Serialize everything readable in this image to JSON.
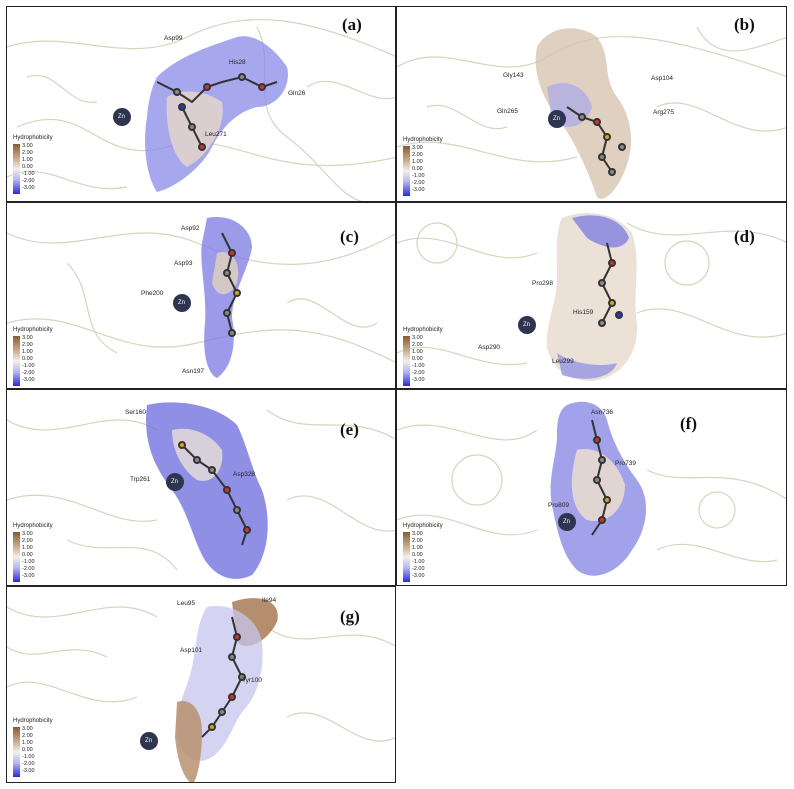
{
  "legend": {
    "title": "Hydrophobicity",
    "ticks": [
      "3.00",
      "2.00",
      "1.00",
      "0.00",
      "-1.00",
      "-2.00",
      "-3.00"
    ]
  },
  "zn_label": "Zn",
  "panels": [
    {
      "label": "(a)",
      "residues": [
        "Asp99",
        "His28",
        "Gln26",
        "Leu271"
      ]
    },
    {
      "label": "(b)",
      "residues": [
        "Gly143",
        "Asp104",
        "Gln265",
        "Arg275"
      ]
    },
    {
      "label": "(c)",
      "residues": [
        "Asp92",
        "Asp93",
        "Phe200",
        "Asn197"
      ]
    },
    {
      "label": "(d)",
      "residues": [
        "Pro298",
        "His159",
        "Asp290",
        "Leu299"
      ]
    },
    {
      "label": "(e)",
      "residues": [
        "Ser160",
        "Asp328",
        "Trp261"
      ]
    },
    {
      "label": "(f)",
      "residues": [
        "Asn736",
        "Pro739",
        "Pro809"
      ]
    },
    {
      "label": "(g)",
      "residues": [
        "Leu95",
        "Ile94",
        "Asp101",
        "Tyr100"
      ]
    }
  ]
}
